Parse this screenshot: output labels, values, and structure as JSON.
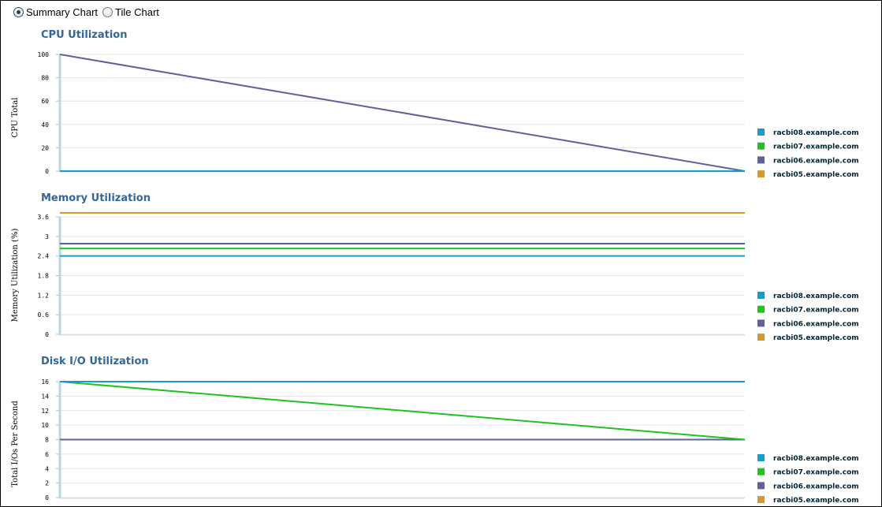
{
  "view_options": {
    "summary_label": "Summary Chart",
    "tile_label": "Tile Chart",
    "selected": "summary"
  },
  "chart_data": [
    {
      "type": "line",
      "title": "CPU Utilization",
      "ylabel": "CPU Total",
      "xlabel": "",
      "ylim": [
        0,
        100
      ],
      "yticks": [
        0,
        20,
        40,
        60,
        80,
        100
      ],
      "grid": true,
      "legend_position": "right",
      "series": [
        {
          "name": "racbi08.example.com",
          "color": "#1a9bc9",
          "values": [
            0,
            0
          ]
        },
        {
          "name": "racbi07.example.com",
          "color": "#1fc21f",
          "values": [
            0,
            0
          ]
        },
        {
          "name": "racbi06.example.com",
          "color": "#5f6199",
          "values": [
            100,
            0
          ]
        },
        {
          "name": "racbi05.example.com",
          "color": "#d49a2e",
          "values": [
            0,
            0
          ]
        }
      ]
    },
    {
      "type": "line",
      "title": "Memory Utilization",
      "ylabel": "Memory Utilization (%)",
      "xlabel": "",
      "ylim": [
        0,
        3.6
      ],
      "yticks": [
        0,
        0.6,
        1.2,
        1.8,
        2.4,
        3,
        3.6
      ],
      "grid": true,
      "legend_position": "right",
      "series": [
        {
          "name": "racbi08.example.com",
          "color": "#1a9bc9",
          "values": [
            2.4,
            2.4
          ]
        },
        {
          "name": "racbi07.example.com",
          "color": "#1fc21f",
          "values": [
            2.63,
            2.63
          ]
        },
        {
          "name": "racbi06.example.com",
          "color": "#5f6199",
          "values": [
            2.78,
            2.78
          ]
        },
        {
          "name": "racbi05.example.com",
          "color": "#d49a2e",
          "values": [
            3.72,
            3.72
          ]
        }
      ]
    },
    {
      "type": "line",
      "title": "Disk I/O Utilization",
      "ylabel": "Total I/Os Per Second",
      "xlabel": "",
      "ylim": [
        0,
        16
      ],
      "yticks": [
        0,
        2,
        4,
        6,
        8,
        10,
        12,
        14,
        16
      ],
      "grid": true,
      "legend_position": "right",
      "series": [
        {
          "name": "racbi08.example.com",
          "color": "#1a9bc9",
          "values": [
            16,
            16
          ]
        },
        {
          "name": "racbi07.example.com",
          "color": "#1fc21f",
          "values": [
            16,
            8
          ]
        },
        {
          "name": "racbi06.example.com",
          "color": "#5f6199",
          "values": [
            8,
            8
          ]
        },
        {
          "name": "racbi05.example.com",
          "color": "#d49a2e",
          "values": [
            8,
            8
          ]
        }
      ]
    }
  ]
}
